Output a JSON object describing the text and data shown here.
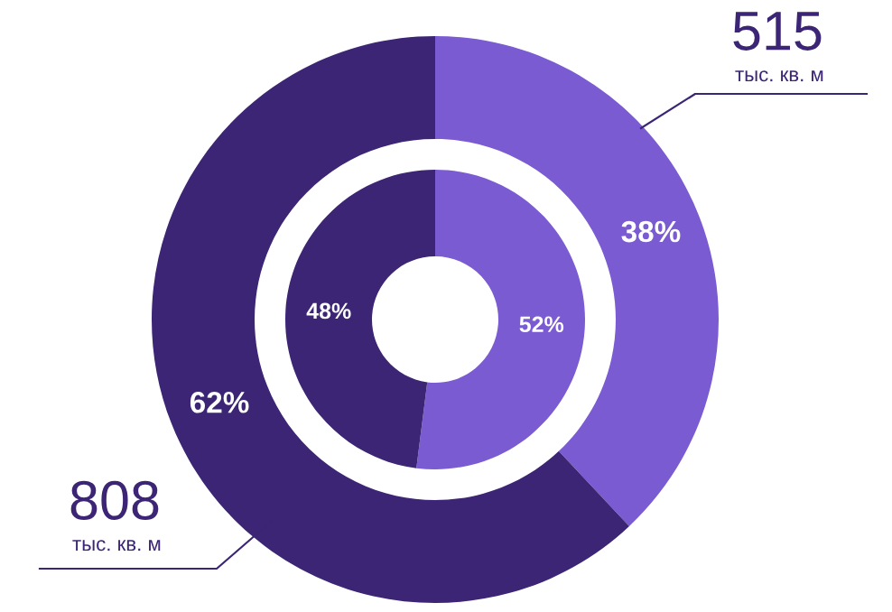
{
  "chart_data": {
    "type": "donut",
    "categories": [
      null,
      null
    ],
    "colors": [
      "#7a5bd1",
      "#3b2574"
    ],
    "series": [
      {
        "values": [
          38,
          62
        ],
        "value_labels": [
          "38%",
          "62%"
        ]
      },
      {
        "values": [
          52,
          48
        ],
        "value_labels": [
          "52%",
          "48%"
        ]
      }
    ],
    "annotations": [
      "515\nтыс. кв. м",
      "808\nтыс. кв. м"
    ]
  }
}
